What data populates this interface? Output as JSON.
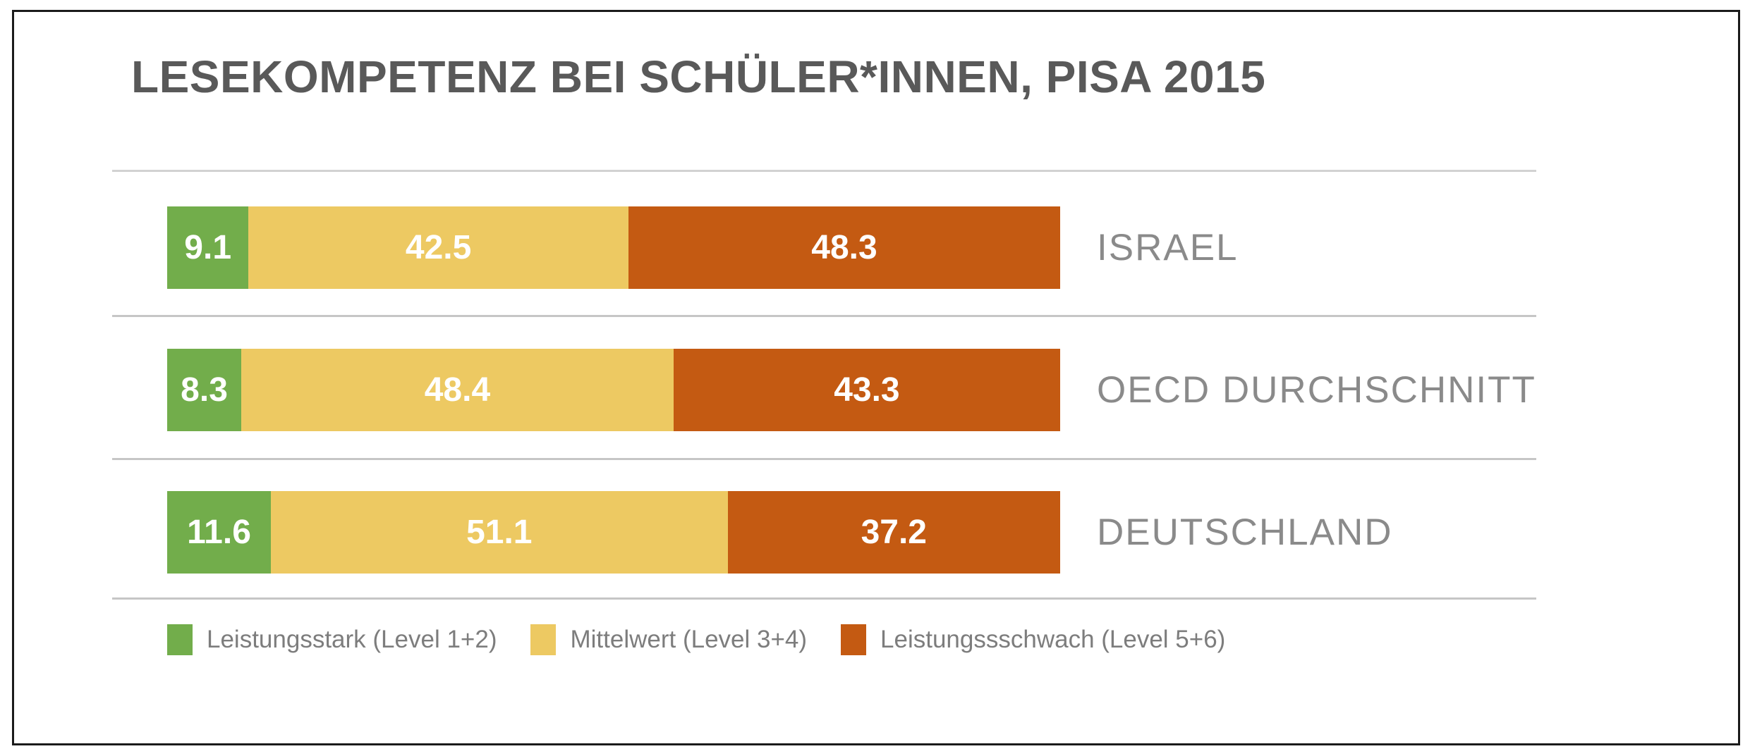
{
  "chart_data": {
    "type": "bar",
    "orientation": "horizontal-stacked",
    "title": "LESEKOMPETENZ BEI SCHÜLER*INNEN, PISA 2015",
    "categories": [
      "ISRAEL",
      "OECD DURCHSCHNITT",
      "DEUTSCHLAND"
    ],
    "series": [
      {
        "name": "Leistungsstark (Level 1+2)",
        "color": "#72ad4b",
        "values": [
          9.1,
          8.3,
          11.6
        ]
      },
      {
        "name": "Mittelwert (Level 3+4)",
        "color": "#edc962",
        "values": [
          42.5,
          48.4,
          51.1
        ]
      },
      {
        "name": "Leistungssschwach (Level 5+6)",
        "color": "#c45a12",
        "values": [
          48.3,
          43.3,
          37.2
        ]
      }
    ],
    "xlim": [
      0,
      100
    ],
    "value_labels": true,
    "value_label_color": "#ffffff",
    "legend_position": "bottom",
    "grid": "row-separators-only"
  },
  "colors": {
    "title_text": "#595959",
    "category_text": "#8a8a8a",
    "legend_text": "#7d7d7d",
    "separator": "#c6c6c6",
    "frame_border": "#1b1b1b",
    "background": "#ffffff"
  }
}
